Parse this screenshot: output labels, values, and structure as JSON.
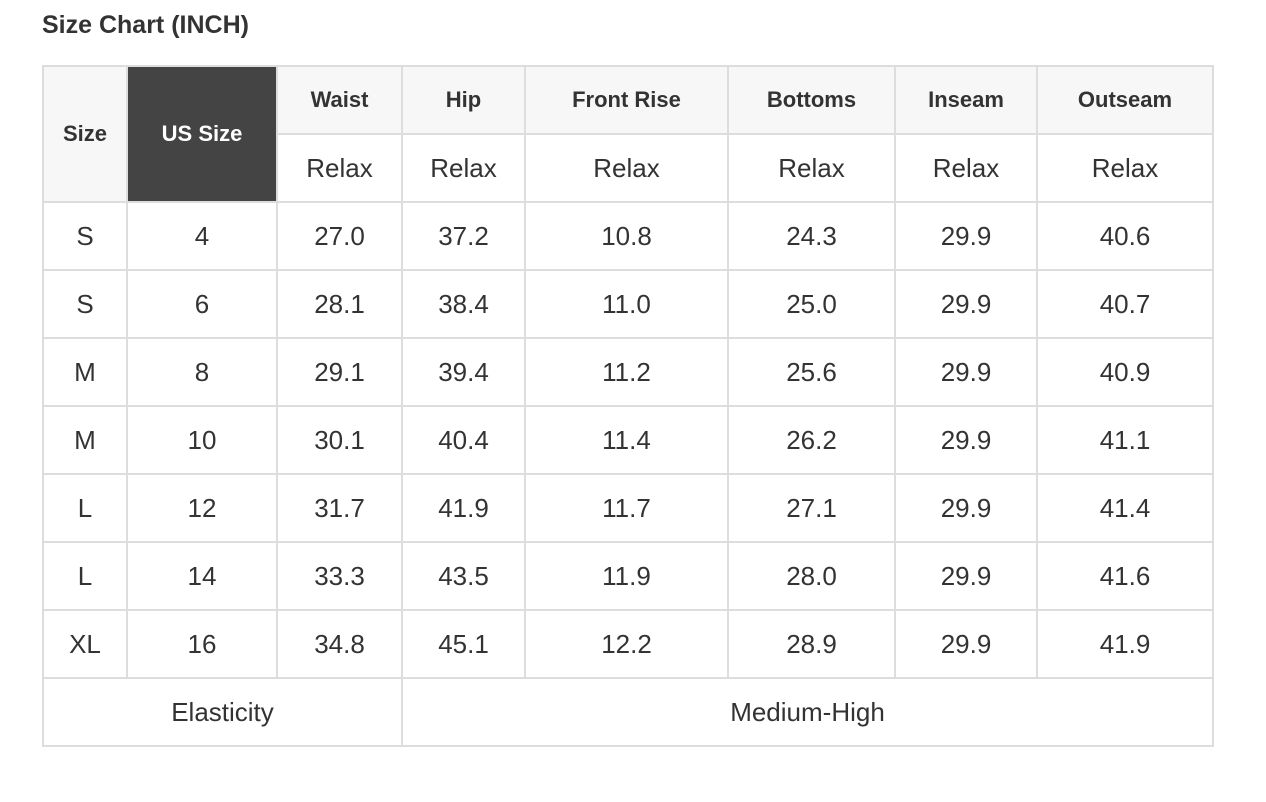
{
  "title": "Size Chart (INCH)",
  "table": {
    "header": {
      "size": "Size",
      "us_size": "US Size",
      "columns": [
        "Waist",
        "Hip",
        "Front Rise",
        "Bottoms",
        "Inseam",
        "Outseam"
      ],
      "sub": [
        "Relax",
        "Relax",
        "Relax",
        "Relax",
        "Relax",
        "Relax"
      ]
    },
    "rows": [
      [
        "S",
        "4",
        "27.0",
        "37.2",
        "10.8",
        "24.3",
        "29.9",
        "40.6"
      ],
      [
        "S",
        "6",
        "28.1",
        "38.4",
        "11.0",
        "25.0",
        "29.9",
        "40.7"
      ],
      [
        "M",
        "8",
        "29.1",
        "39.4",
        "11.2",
        "25.6",
        "29.9",
        "40.9"
      ],
      [
        "M",
        "10",
        "30.1",
        "40.4",
        "11.4",
        "26.2",
        "29.9",
        "41.1"
      ],
      [
        "L",
        "12",
        "31.7",
        "41.9",
        "11.7",
        "27.1",
        "29.9",
        "41.4"
      ],
      [
        "L",
        "14",
        "33.3",
        "43.5",
        "11.9",
        "28.0",
        "29.9",
        "41.6"
      ],
      [
        "XL",
        "16",
        "34.8",
        "45.1",
        "12.2",
        "28.9",
        "29.9",
        "41.9"
      ]
    ],
    "footer": {
      "label": "Elasticity",
      "value": "Medium-High"
    }
  }
}
